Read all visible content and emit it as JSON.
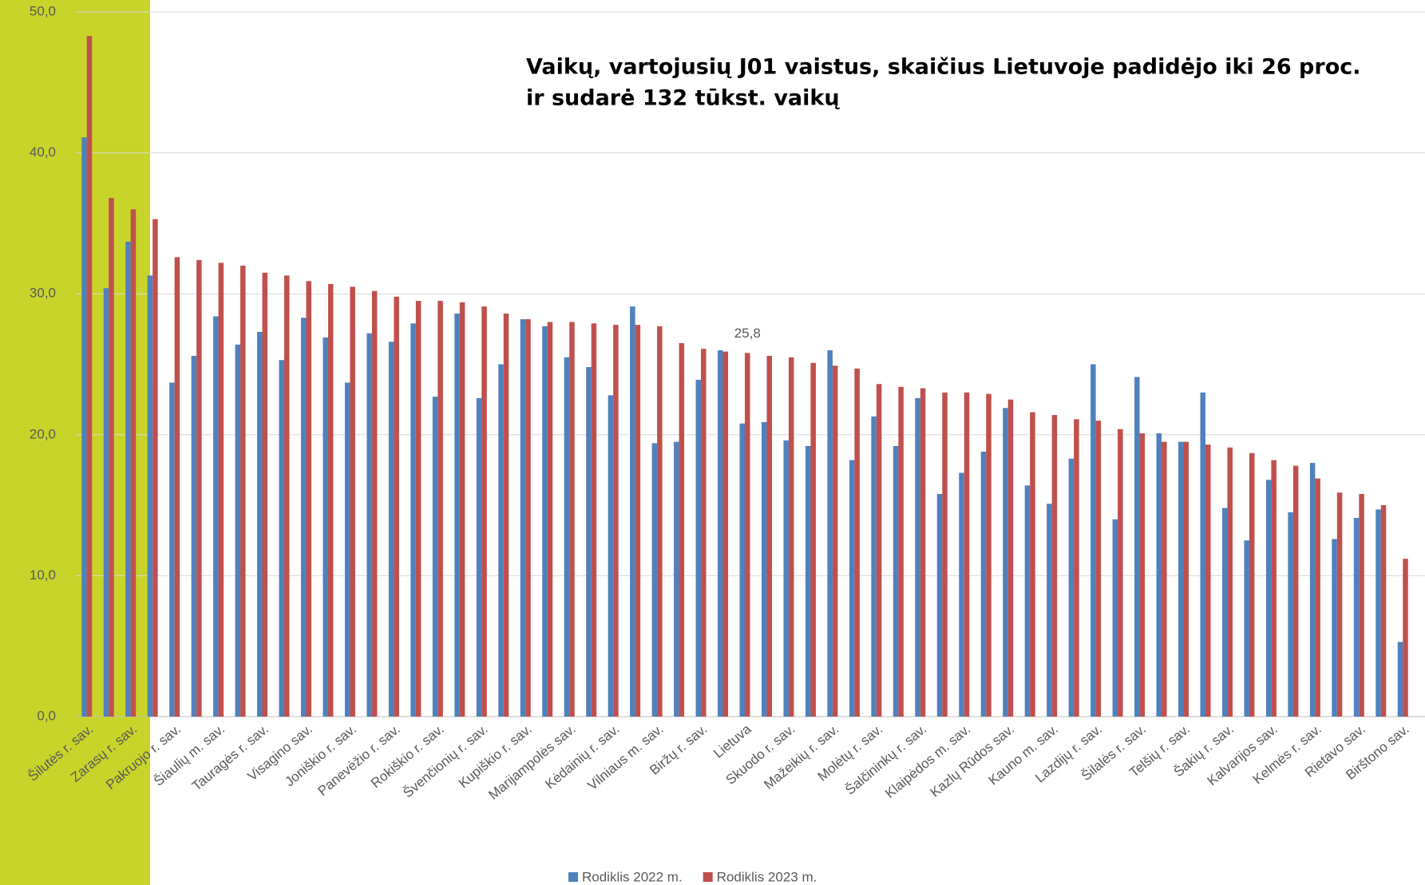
{
  "chart_data": {
    "type": "bar",
    "title_lines": [
      "Vaikų, vartojusių J01 vaistus, skaičius Lietuvoje padidėjo iki 26 proc.",
      "ir sudarė 132 tūkst. vaikų"
    ],
    "categories": [
      "Šilutės r. sav.",
      null,
      "Zarasų r. sav.",
      null,
      "Pakruojo r. sav.",
      null,
      "Šiaulių m. sav.",
      null,
      "Tauragės r. sav.",
      null,
      "Visagino sav.",
      null,
      "Joniškio r. sav.",
      null,
      "Panevėžio r. sav.",
      null,
      "Rokiškio r. sav.",
      null,
      "Švenčionių r. sav.",
      null,
      "Kupiškio r. sav.",
      null,
      "Marijampolės sav.",
      null,
      "Kėdainių r. sav.",
      null,
      "Vilniaus m. sav.",
      null,
      "Biržų r. sav.",
      null,
      "Lietuva",
      null,
      "Skuodo r. sav.",
      null,
      "Mažeikių r. sav.",
      null,
      "Molėtų r. sav.",
      null,
      "Šalčininkų r. sav.",
      null,
      "Klaipėdos m. sav.",
      null,
      "Kazlų Rūdos sav.",
      null,
      "Kauno m. sav.",
      null,
      "Lazdijų r. sav.",
      null,
      "Šilalės r. sav.",
      null,
      "Telšių r. sav.",
      null,
      "Šakių r. sav.",
      null,
      "Kalvarijos sav.",
      null,
      "Kelmės r. sav.",
      null,
      "Rietavo sav.",
      null,
      "Birštono sav."
    ],
    "series": [
      {
        "name": "Rodiklis 2022 m.",
        "color": "#4f81bd",
        "values": [
          41.1,
          30.4,
          33.7,
          31.3,
          23.7,
          25.6,
          28.4,
          26.4,
          27.3,
          25.3,
          28.3,
          26.9,
          23.7,
          27.2,
          26.6,
          27.9,
          22.7,
          28.6,
          22.6,
          25.0,
          28.2,
          27.7,
          25.5,
          24.8,
          22.8,
          29.1,
          19.4,
          19.5,
          23.9,
          26.0,
          20.8,
          20.9,
          19.6,
          19.2,
          26.0,
          18.2,
          21.3,
          19.2,
          22.6,
          15.8,
          17.3,
          18.8,
          21.9,
          16.4,
          15.1,
          18.3,
          25.0,
          14.0,
          24.1,
          20.1,
          19.5,
          23.0,
          14.8,
          12.5,
          16.8,
          14.5,
          18.0,
          12.6,
          14.1,
          14.7,
          5.3
        ]
      },
      {
        "name": "Rodiklis 2023 m.",
        "color": "#c0504d",
        "values": [
          48.3,
          36.8,
          36.0,
          35.3,
          32.6,
          32.4,
          32.2,
          32.0,
          31.5,
          31.3,
          30.9,
          30.7,
          30.5,
          30.2,
          29.8,
          29.5,
          29.5,
          29.4,
          29.1,
          28.6,
          28.2,
          28.0,
          28.0,
          27.9,
          27.8,
          27.8,
          27.7,
          26.5,
          26.1,
          25.9,
          25.8,
          25.6,
          25.5,
          25.1,
          24.9,
          24.7,
          23.6,
          23.4,
          23.3,
          23.0,
          23.0,
          22.9,
          22.5,
          21.6,
          21.4,
          21.1,
          21.0,
          20.4,
          20.1,
          19.5,
          19.5,
          19.3,
          19.1,
          18.7,
          18.2,
          17.8,
          16.9,
          15.9,
          15.8,
          15.0,
          11.2
        ],
        "value_labels": [
          null,
          null,
          null,
          null,
          null,
          null,
          null,
          null,
          null,
          null,
          null,
          null,
          null,
          null,
          null,
          null,
          null,
          null,
          null,
          null,
          null,
          null,
          null,
          null,
          null,
          null,
          null,
          null,
          null,
          null,
          "25,8",
          null,
          null,
          null,
          null,
          null,
          null,
          null,
          null,
          null,
          null,
          null,
          null,
          null,
          null,
          null,
          null,
          null,
          null,
          null,
          null,
          null,
          null,
          null,
          null,
          null,
          null,
          null,
          null,
          null,
          null
        ]
      }
    ],
    "ylim": [
      0,
      50
    ],
    "yticks": [
      {
        "value": 0,
        "label": "0,0"
      },
      {
        "value": 10,
        "label": "10,0"
      },
      {
        "value": 20,
        "label": "20,0"
      },
      {
        "value": 30,
        "label": "30,0"
      },
      {
        "value": 40,
        "label": "40,0"
      },
      {
        "value": 50,
        "label": "50,0"
      }
    ],
    "grid": true,
    "legend": "bottom"
  }
}
